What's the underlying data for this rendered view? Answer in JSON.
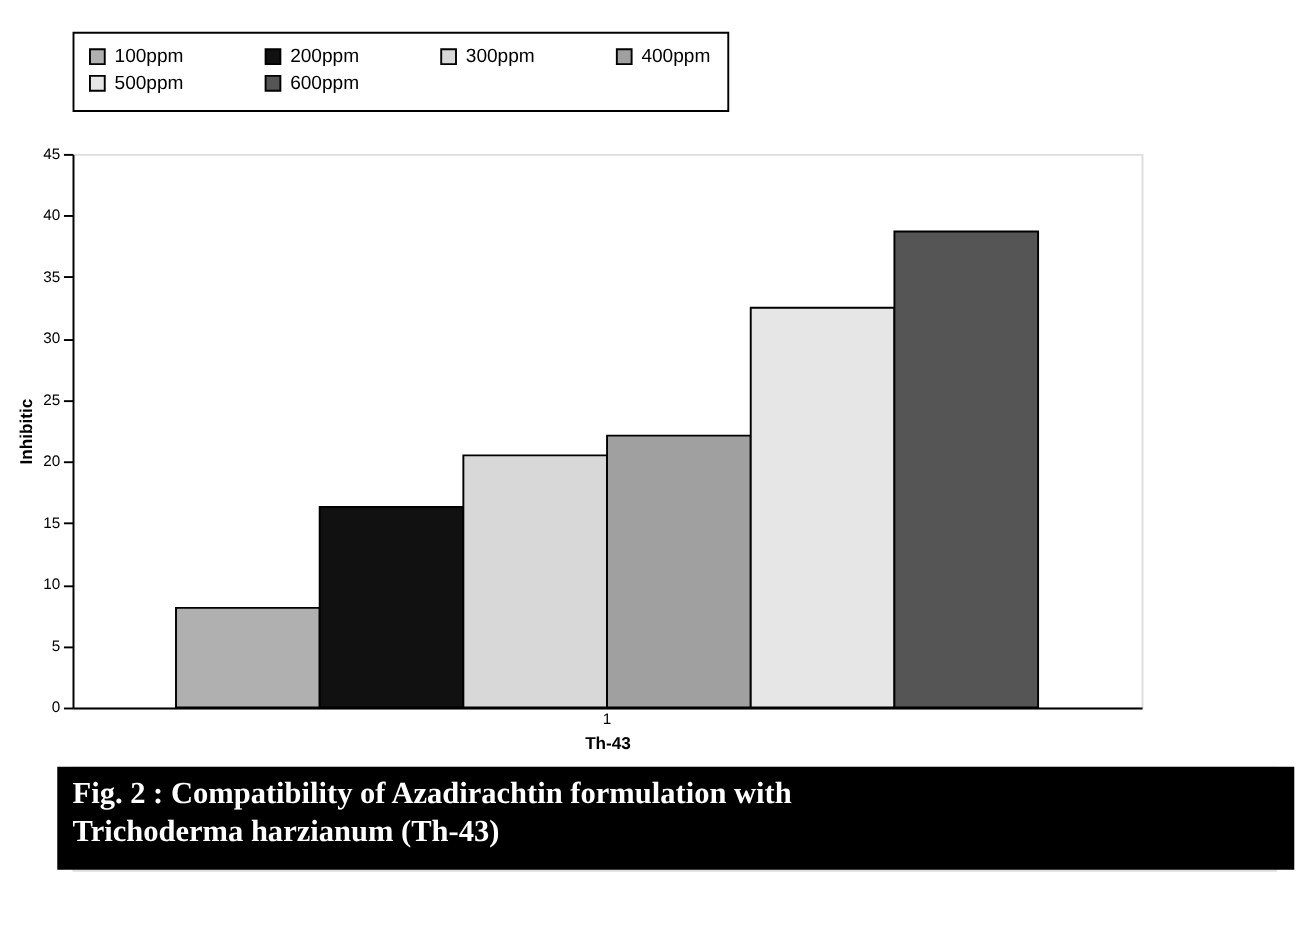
{
  "chart_data": {
    "type": "bar",
    "categories": [
      "1"
    ],
    "xlabel": "Th-43",
    "ylabel": "Inhibitic",
    "series": [
      {
        "name": "100ppm",
        "color": "#b0b0b0",
        "values": [
          8.1
        ]
      },
      {
        "name": "200ppm",
        "color": "#111111",
        "values": [
          16.3
        ]
      },
      {
        "name": "300ppm",
        "color": "#d8d8d8",
        "values": [
          20.5
        ]
      },
      {
        "name": "400ppm",
        "color": "#a0a0a0",
        "values": [
          22.1
        ]
      },
      {
        "name": "500ppm",
        "color": "#e6e6e6",
        "values": [
          32.5
        ]
      },
      {
        "name": "600ppm",
        "color": "#555555",
        "values": [
          38.7
        ]
      }
    ],
    "ylim": [
      0,
      45
    ],
    "yticks": [
      0,
      5,
      10,
      15,
      20,
      25,
      30,
      35,
      40,
      45
    ],
    "grid": false,
    "legend": "top",
    "annotations": [
      "Fig. 2 : Compatibility of Azadirachtin formulation with Trichoderma harzianum (Th-43)"
    ]
  }
}
